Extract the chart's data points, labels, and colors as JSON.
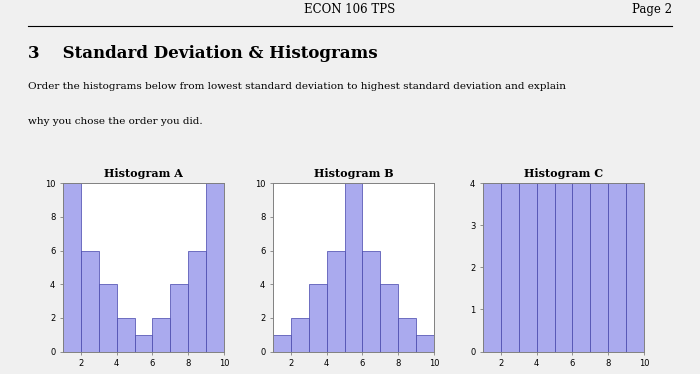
{
  "header_left": "ECON 106 TPS",
  "header_right": "Page 2",
  "section_title": "3    Standard Deviation & Histograms",
  "body_text_line1": "Order the histograms below from lowest standard deviation to highest standard deviation and explain",
  "body_text_line2": "why you chose the order you did.",
  "hist_A_label": "Histogram A",
  "hist_B_label": "Histogram B",
  "hist_C_label": "Histogram C",
  "hist_A_values": [
    10,
    6,
    4,
    2,
    1,
    2,
    4,
    6,
    10
  ],
  "hist_B_values": [
    1,
    2,
    4,
    6,
    10,
    6,
    4,
    2,
    1
  ],
  "hist_C_values": [
    4,
    4,
    4,
    4,
    4,
    4,
    4,
    4,
    4
  ],
  "hist_bins": [
    1,
    2,
    3,
    4,
    5,
    6,
    7,
    8,
    9,
    10
  ],
  "bar_color": "#aaaaee",
  "bar_edge_color": "#4444aa",
  "page_bg": "#f0f0f0",
  "ylim_AB": [
    0,
    10
  ],
  "ylim_C": [
    0,
    4
  ],
  "yticks_AB": [
    0,
    2,
    4,
    6,
    8,
    10
  ],
  "yticks_C": [
    0,
    1,
    2,
    3,
    4
  ],
  "xticks": [
    2,
    4,
    6,
    8,
    10
  ]
}
